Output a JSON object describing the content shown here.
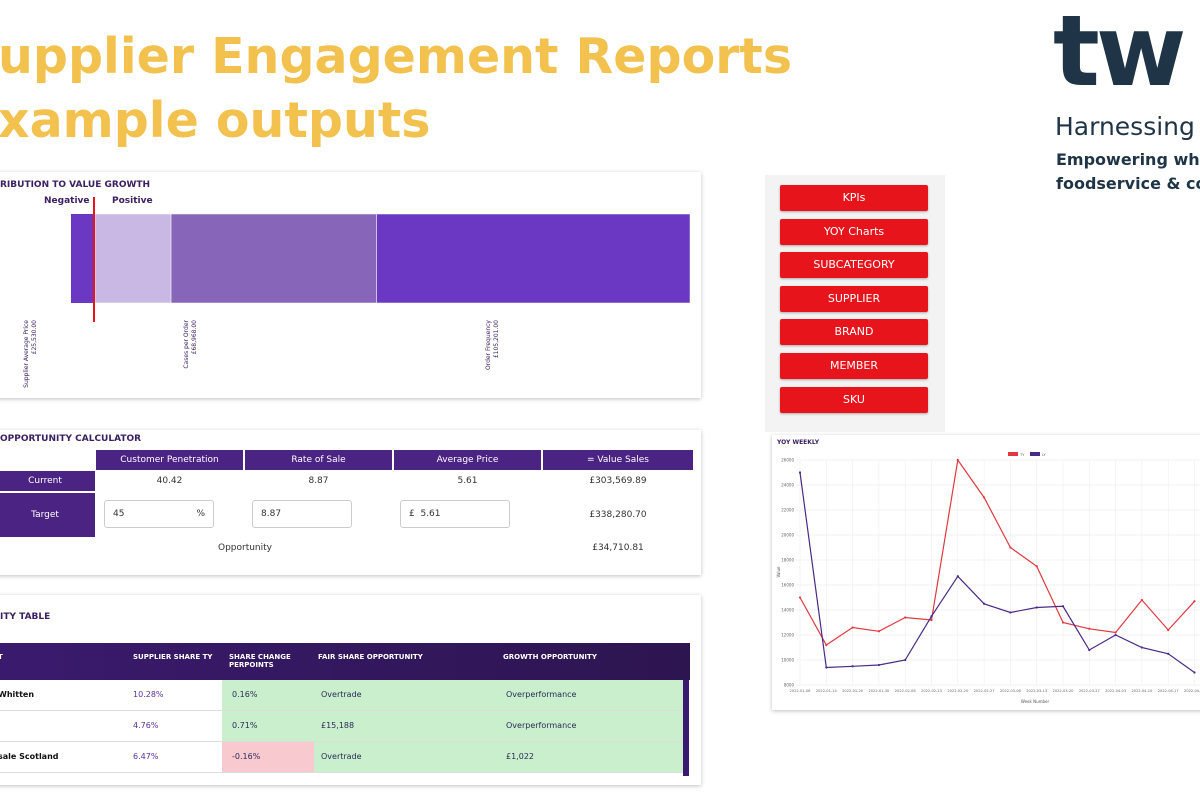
{
  "header": {
    "title_lines": [
      "upplier Engagement Reports",
      "xample outputs"
    ]
  },
  "logo": {
    "mark": "tw",
    "tagline": "Harnessing",
    "lines": [
      "Empowering who",
      "foodservice & co"
    ]
  },
  "contribution": {
    "title": "RIBUTION TO VALUE GROWTH",
    "negative_label": "Negative",
    "positive_label": "Positive",
    "categories": [
      "Supplier Average Price",
      "Cases per Order",
      "Order Frequency"
    ],
    "values": [
      25530,
      68968,
      105201
    ],
    "value_labels": [
      "£25,530.00",
      "£68,968.00",
      "£105,201.00"
    ],
    "colors": [
      "#c9b8e4",
      "#8765b8",
      "#6a38c2"
    ]
  },
  "calculator": {
    "title": "OPPORTUNITY CALCULATOR",
    "headers": [
      "Customer Penetration",
      "Rate of Sale",
      "Average Price",
      "= Value Sales"
    ],
    "current": {
      "label": "Current",
      "cells": [
        "40.42",
        "8.87",
        "5.61",
        "£303,569.89"
      ]
    },
    "target": {
      "label": "Target",
      "penetration": "45",
      "penetration_unit": "%",
      "rate": "8.87",
      "price_unit": "£",
      "price": "5.61",
      "value": "£338,280.70"
    },
    "opportunity": {
      "label": "Opportunity",
      "value": "£34,710.81"
    }
  },
  "menu": {
    "buttons": [
      "KPIs",
      "YOY Charts",
      "SUBCATEGORY",
      "SUPPLIER",
      "BRAND",
      "MEMBER",
      "SKU"
    ]
  },
  "chart_data": {
    "type": "line",
    "title": "YOY WEEKLY",
    "x_label": "Week Number",
    "y_label": "Value",
    "categories": [
      "2022-01-06",
      "2022-01-14",
      "2022-01-20",
      "2022-01-30",
      "2022-02-06",
      "2022-02-13",
      "2022-02-20",
      "2022-02-27",
      "2022-03-06",
      "2022-03-13",
      "2022-03-20",
      "2022-03-27",
      "2022-04-03",
      "2022-04-10",
      "2022-04-17",
      "2022-04-24"
    ],
    "series": [
      {
        "name": "TY",
        "color": "#e0383f",
        "values": [
          15000,
          11200,
          12600,
          12300,
          13400,
          13200,
          26000,
          23000,
          19000,
          17500,
          13000,
          12500,
          12200,
          14800,
          12400,
          14700
        ]
      },
      {
        "name": "LY",
        "color": "#4b2a86",
        "values": [
          25000,
          9400,
          9500,
          9600,
          10000,
          13500,
          16700,
          14500,
          13800,
          14200,
          14300,
          10800,
          12000,
          11000,
          10500,
          9000
        ]
      }
    ],
    "ylim": [
      8000,
      26000
    ],
    "yticks": [
      8000,
      10000,
      12000,
      14000,
      16000,
      18000,
      20000,
      22000,
      24000,
      26000
    ],
    "grid": true,
    "legend": "top"
  },
  "opportunity_table": {
    "title": "ITY TABLE",
    "headers": [
      "T",
      "SUPPLIER SHARE TY",
      "SHARE CHANGE PERPOINTS",
      "FAIR SHARE OPPORTUNITY",
      "GROWTH OPPORTUNITY"
    ],
    "rows": [
      [
        "Whitten",
        "10.28%",
        "0.16%",
        "Overtrade",
        "Overperformance"
      ],
      [
        null,
        "4.76%",
        "0.71%",
        "£15,188",
        "Overperformance"
      ],
      [
        "sale Scotland",
        "6.47%",
        "-0.16%",
        "Overtrade",
        "£1,022"
      ]
    ]
  }
}
